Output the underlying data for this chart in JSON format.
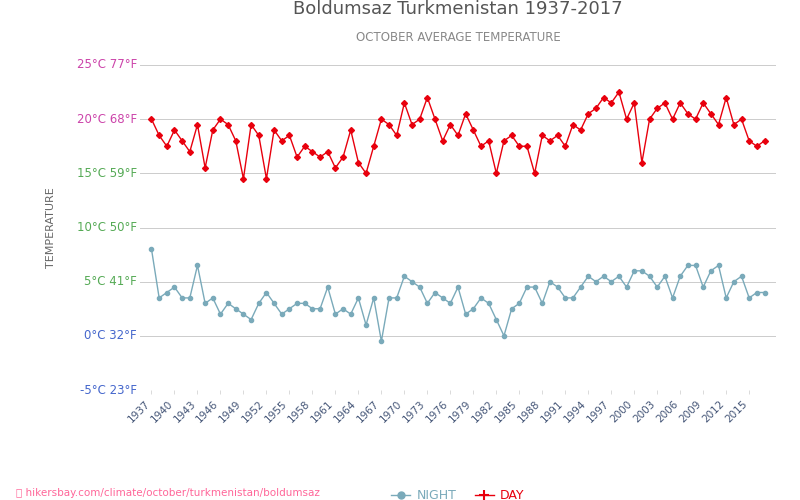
{
  "title": "Boldumsaz Turkmenistan 1937-2017",
  "subtitle": "OCTOBER AVERAGE TEMPERATURE",
  "ylabel": "TEMPERATURE",
  "xlabel_url": "hikersbay.com/climate/october/turkmenistan/boldumsaz",
  "legend_night": "NIGHT",
  "legend_day": "DAY",
  "years": [
    1937,
    1938,
    1939,
    1940,
    1941,
    1942,
    1943,
    1944,
    1945,
    1946,
    1947,
    1948,
    1949,
    1950,
    1951,
    1952,
    1953,
    1954,
    1955,
    1956,
    1957,
    1958,
    1959,
    1960,
    1961,
    1962,
    1963,
    1964,
    1965,
    1966,
    1967,
    1968,
    1969,
    1970,
    1971,
    1972,
    1973,
    1974,
    1975,
    1976,
    1977,
    1978,
    1979,
    1980,
    1981,
    1982,
    1983,
    1984,
    1985,
    1986,
    1987,
    1988,
    1989,
    1990,
    1991,
    1992,
    1993,
    1994,
    1995,
    1996,
    1997,
    1998,
    1999,
    2000,
    2001,
    2002,
    2003,
    2004,
    2005,
    2006,
    2007,
    2008,
    2009,
    2010,
    2011,
    2012,
    2013,
    2014,
    2015,
    2016,
    2017
  ],
  "day": [
    20.0,
    18.5,
    17.5,
    19.0,
    18.0,
    17.0,
    19.5,
    15.5,
    19.0,
    20.0,
    19.5,
    18.0,
    14.5,
    19.5,
    18.5,
    14.5,
    19.0,
    18.0,
    18.5,
    16.5,
    17.5,
    17.0,
    16.5,
    17.0,
    15.5,
    16.5,
    19.0,
    16.0,
    15.0,
    17.5,
    20.0,
    19.5,
    18.5,
    21.5,
    19.5,
    20.0,
    22.0,
    20.0,
    18.0,
    19.5,
    18.5,
    20.5,
    19.0,
    17.5,
    18.0,
    15.0,
    18.0,
    18.5,
    17.5,
    17.5,
    15.0,
    18.5,
    18.0,
    18.5,
    17.5,
    19.5,
    19.0,
    20.5,
    21.0,
    22.0,
    21.5,
    22.5,
    20.0,
    21.5,
    16.0,
    20.0,
    21.0,
    21.5,
    20.0,
    21.5,
    20.5,
    20.0,
    21.5,
    20.5,
    19.5,
    22.0,
    19.5,
    20.0,
    18.0,
    17.5,
    18.0
  ],
  "night": [
    8.0,
    3.5,
    4.0,
    4.5,
    3.5,
    3.5,
    6.5,
    3.0,
    3.5,
    2.0,
    3.0,
    2.5,
    2.0,
    1.5,
    3.0,
    4.0,
    3.0,
    2.0,
    2.5,
    3.0,
    3.0,
    2.5,
    2.5,
    4.5,
    2.0,
    2.5,
    2.0,
    3.5,
    1.0,
    3.5,
    -0.5,
    3.5,
    3.5,
    5.5,
    5.0,
    4.5,
    3.0,
    4.0,
    3.5,
    3.0,
    4.5,
    2.0,
    2.5,
    3.5,
    3.0,
    1.5,
    0.0,
    2.5,
    3.0,
    4.5,
    4.5,
    3.0,
    5.0,
    4.5,
    3.5,
    3.5,
    4.5,
    5.5,
    5.0,
    5.5,
    5.0,
    5.5,
    4.5,
    6.0,
    6.0,
    5.5,
    4.5,
    5.5,
    3.5,
    5.5,
    6.5,
    6.5,
    4.5,
    6.0,
    6.5,
    3.5,
    5.0,
    5.5,
    3.5,
    4.0,
    4.0
  ],
  "ylim": [
    -5,
    25
  ],
  "yticks_c": [
    -5,
    0,
    5,
    10,
    15,
    20,
    25
  ],
  "yticks_labels_left": [
    "-5°C 23°F",
    "0°C 32°F",
    "5°C 41°F",
    "10°C 50°F",
    "15°C 59°F",
    "20°C 68°F",
    "25°C 77°F"
  ],
  "day_color": "#e8000d",
  "night_color": "#7aaaba",
  "grid_color": "#cccccc",
  "title_color": "#555555",
  "subtitle_color": "#888888",
  "ylabel_color": "#666666",
  "bg_color": "#ffffff",
  "tick_label_color_green": "#55aa55",
  "tick_label_color_blue": "#4466cc",
  "tick_label_color_pink": "#cc44aa",
  "xtick_color": "#445577",
  "url_color": "#ff6699",
  "url_icon_color": "#ff6600"
}
